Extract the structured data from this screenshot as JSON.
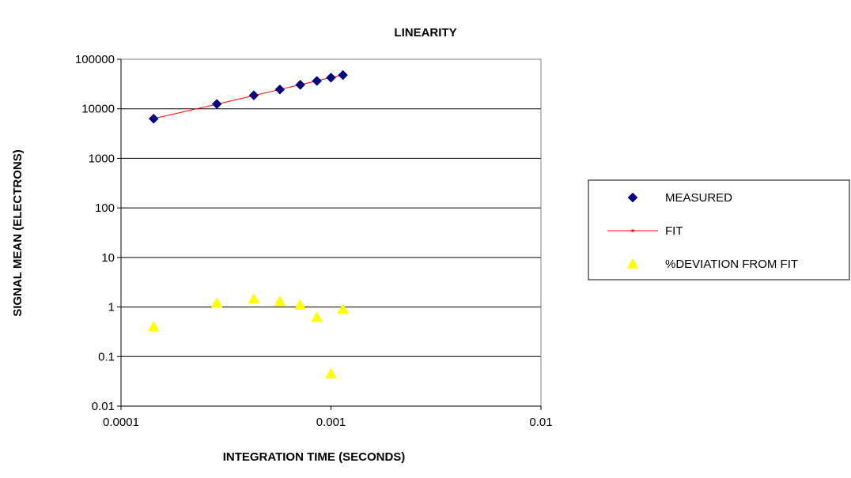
{
  "chart_data": {
    "type": "scatter",
    "title": "LINEARITY",
    "xlabel": "INTEGRATION TIME (SECONDS)",
    "ylabel": "SIGNAL MEAN (ELECTRONS)",
    "x_scale": "log",
    "y_scale": "log",
    "xlim": [
      0.0001,
      0.01
    ],
    "ylim": [
      0.01,
      100000
    ],
    "x_ticks": [
      "0.0001",
      "0.001",
      "0.01"
    ],
    "y_ticks": [
      "0.01",
      "0.1",
      "1",
      "10",
      "100",
      "1000",
      "10000",
      "100000"
    ],
    "grid": "horizontal",
    "legend_position": "right",
    "series": [
      {
        "name": "MEASURED",
        "kind": "scatter",
        "marker": "diamond",
        "color": "#000080",
        "x": [
          0.000143,
          0.000286,
          0.000429,
          0.000571,
          0.000714,
          0.000857,
          0.001,
          0.00114
        ],
        "y": [
          6300,
          12500,
          18700,
          24500,
          30500,
          36500,
          42500,
          48000
        ]
      },
      {
        "name": "FIT",
        "kind": "line",
        "marker": "small-square",
        "color": "#ff0000",
        "x": [
          0.000143,
          0.000286,
          0.000429,
          0.000571,
          0.000714,
          0.000857,
          0.001,
          0.00114
        ],
        "y": [
          6350,
          12400,
          18500,
          24600,
          30600,
          36700,
          42800,
          48800
        ]
      },
      {
        "name": "%DEVIATION FROM FIT",
        "kind": "scatter",
        "marker": "triangle",
        "color": "#ffff00",
        "x": [
          0.000143,
          0.000286,
          0.000429,
          0.000571,
          0.000714,
          0.000857,
          0.001,
          0.00114
        ],
        "y": [
          0.4,
          1.2,
          1.45,
          1.3,
          1.1,
          0.62,
          0.045,
          0.9
        ]
      }
    ]
  }
}
